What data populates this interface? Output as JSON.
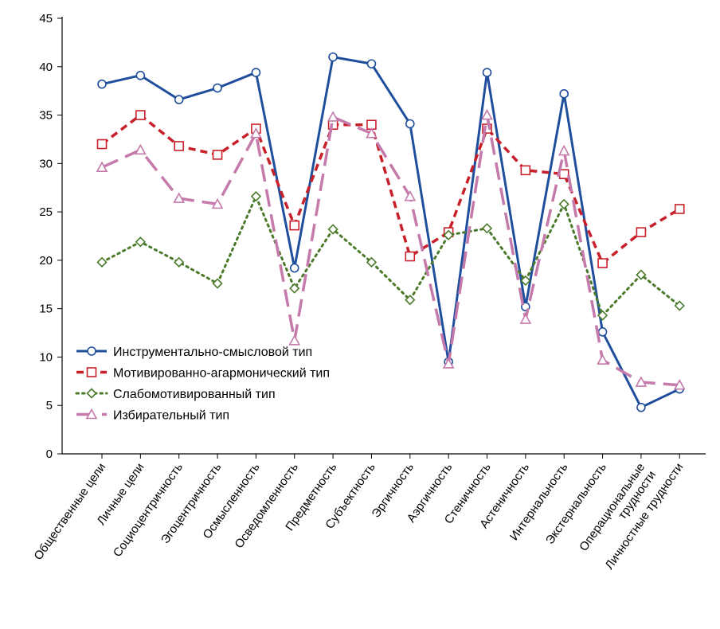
{
  "chart_data": {
    "type": "line",
    "categories": [
      [
        "Общественные цели"
      ],
      [
        "Личные цели"
      ],
      [
        "Социоцентричность"
      ],
      [
        "Эгоцентричность"
      ],
      [
        "Осмысленность"
      ],
      [
        "Осведомленность"
      ],
      [
        "Предметность"
      ],
      [
        "Субъектность"
      ],
      [
        "Эргичность"
      ],
      [
        "Аэргичность"
      ],
      [
        "Стеничность"
      ],
      [
        "Астеничность"
      ],
      [
        "Интернальность"
      ],
      [
        "Экстернальность"
      ],
      [
        "Операциональные",
        "трудности"
      ],
      [
        "Личностные трудности"
      ]
    ],
    "ylim": [
      0,
      45
    ],
    "yticks": [
      0,
      5,
      10,
      15,
      20,
      25,
      30,
      35,
      40,
      45
    ],
    "series": [
      {
        "name": "Инструментально-смысловой тип",
        "color": "#1f4e9c",
        "line": "solid",
        "marker": "circle",
        "values": [
          38.2,
          39.1,
          36.6,
          37.8,
          39.4,
          19.2,
          41.0,
          40.3,
          34.1,
          9.5,
          39.4,
          15.2,
          37.2,
          12.6,
          4.8,
          6.7
        ]
      },
      {
        "name": "Мотивированно-агармонический тип",
        "color": "#c8202b",
        "line": "dashed",
        "marker": "square",
        "values": [
          32.0,
          35.0,
          31.8,
          30.9,
          33.6,
          23.6,
          34.0,
          34.0,
          20.4,
          22.9,
          33.6,
          29.3,
          28.9,
          19.7,
          22.9,
          25.3
        ]
      },
      {
        "name": "Слабомотивированный тип",
        "color": "#4a7a2a",
        "line": "dotted",
        "marker": "diamond",
        "values": [
          19.8,
          21.9,
          19.8,
          17.6,
          26.6,
          17.1,
          23.2,
          19.8,
          15.9,
          22.6,
          23.3,
          17.9,
          25.8,
          14.3,
          18.5,
          15.3
        ]
      },
      {
        "name": "Избирательный тип",
        "color": "#c47aaa",
        "line": "longdash",
        "marker": "triangle",
        "values": [
          29.6,
          31.4,
          26.4,
          25.8,
          33.1,
          11.7,
          34.8,
          33.1,
          26.6,
          9.3,
          35.0,
          13.9,
          31.3,
          9.7,
          7.4,
          7.1
        ]
      }
    ],
    "legend_position": "bottom-left",
    "grid": false
  }
}
